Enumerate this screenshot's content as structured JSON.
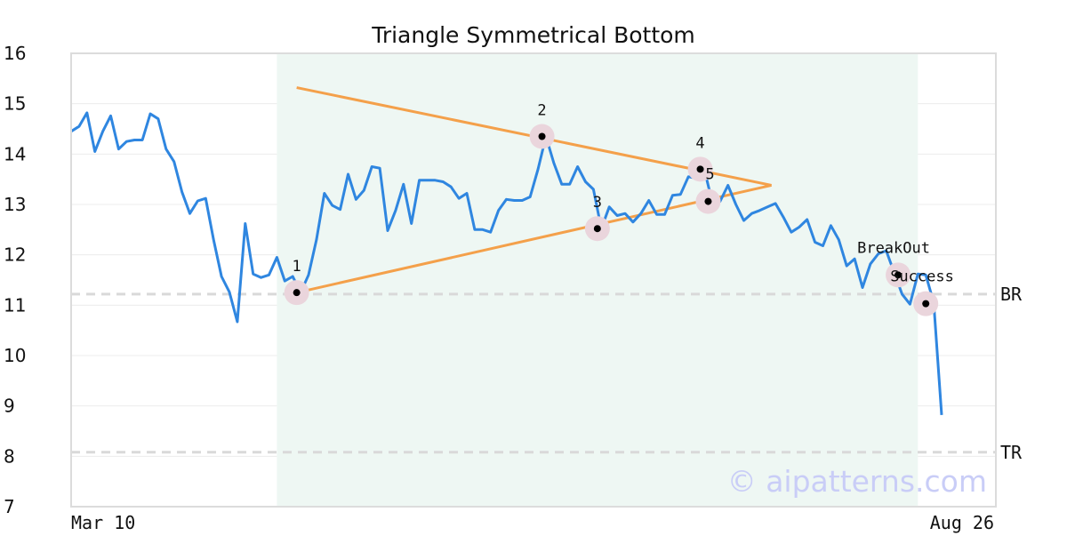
{
  "chart_data": {
    "type": "line",
    "title": "Triangle Symmetrical Bottom",
    "xlabel": "",
    "ylabel": "",
    "ylim": [
      7,
      16
    ],
    "yticks": [
      7,
      8,
      9,
      10,
      11,
      12,
      13,
      14,
      15,
      16
    ],
    "x_tick_labels": [
      "Mar 10",
      "Aug 26"
    ],
    "grid": true,
    "watermark": "© aipatterns.com",
    "colors": {
      "price_line": "#2f86e0",
      "trend_lines": "#f4a04a",
      "pattern_region": "#eef7f3",
      "marker_halo": "#ead5dc",
      "marker_dot": "#000000",
      "ref_line": "#d9d9d9",
      "frame": "#dcdcdc",
      "watermark": "#c9cdf7"
    },
    "price": [
      14.45,
      14.55,
      14.82,
      14.05,
      14.45,
      14.76,
      14.1,
      14.25,
      14.28,
      14.28,
      14.8,
      14.7,
      14.1,
      13.85,
      13.25,
      12.82,
      13.07,
      13.12,
      12.3,
      11.57,
      11.26,
      10.67,
      12.62,
      11.62,
      11.55,
      11.6,
      11.95,
      11.48,
      11.57,
      11.25,
      11.6,
      12.3,
      13.22,
      12.98,
      12.9,
      13.6,
      13.1,
      13.28,
      13.75,
      13.72,
      12.48,
      12.88,
      13.4,
      12.62,
      13.48,
      13.48,
      13.48,
      13.45,
      13.35,
      13.12,
      13.22,
      12.5,
      12.5,
      12.45,
      12.88,
      13.1,
      13.08,
      13.08,
      13.15,
      13.7,
      14.35,
      13.82,
      13.4,
      13.4,
      13.75,
      13.45,
      13.3,
      12.52,
      12.95,
      12.78,
      12.82,
      12.65,
      12.82,
      13.08,
      12.8,
      12.8,
      13.18,
      13.2,
      13.55,
      13.52,
      13.7,
      13.06,
      13.06,
      13.38,
      13.0,
      12.68,
      12.82,
      12.88,
      12.95,
      13.02,
      12.75,
      12.45,
      12.55,
      12.7,
      12.25,
      12.18,
      12.58,
      12.3,
      11.78,
      11.92,
      11.35,
      11.82,
      12.02,
      12.08,
      11.65,
      11.22,
      11.02,
      11.62,
      11.6,
      11.05,
      8.82
    ],
    "pattern_region": {
      "start_index": 26,
      "end_index": 107
    },
    "points": [
      {
        "label": "1",
        "index": 28.5,
        "value": 11.25
      },
      {
        "label": "2",
        "index": 59.5,
        "value": 14.35
      },
      {
        "label": "3",
        "index": 66.5,
        "value": 12.52
      },
      {
        "label": "4",
        "index": 79.5,
        "value": 13.7
      },
      {
        "label": "5",
        "index": 80.5,
        "value": 13.06
      }
    ],
    "events": [
      {
        "label": "BreakOut",
        "index": 104.5,
        "value": 11.6
      },
      {
        "label": "Success",
        "index": 108.0,
        "value": 11.03
      }
    ],
    "trend_lines": [
      {
        "name": "upper",
        "from": {
          "index": 28.5,
          "value": 15.32
        },
        "to": {
          "index": 88.5,
          "value": 13.38
        }
      },
      {
        "name": "lower",
        "from": {
          "index": 28.5,
          "value": 11.25
        },
        "to": {
          "index": 88.5,
          "value": 13.38
        }
      }
    ],
    "reference_lines": [
      {
        "label": "BR",
        "value": 11.22
      },
      {
        "label": "TR",
        "value": 8.08
      }
    ]
  }
}
